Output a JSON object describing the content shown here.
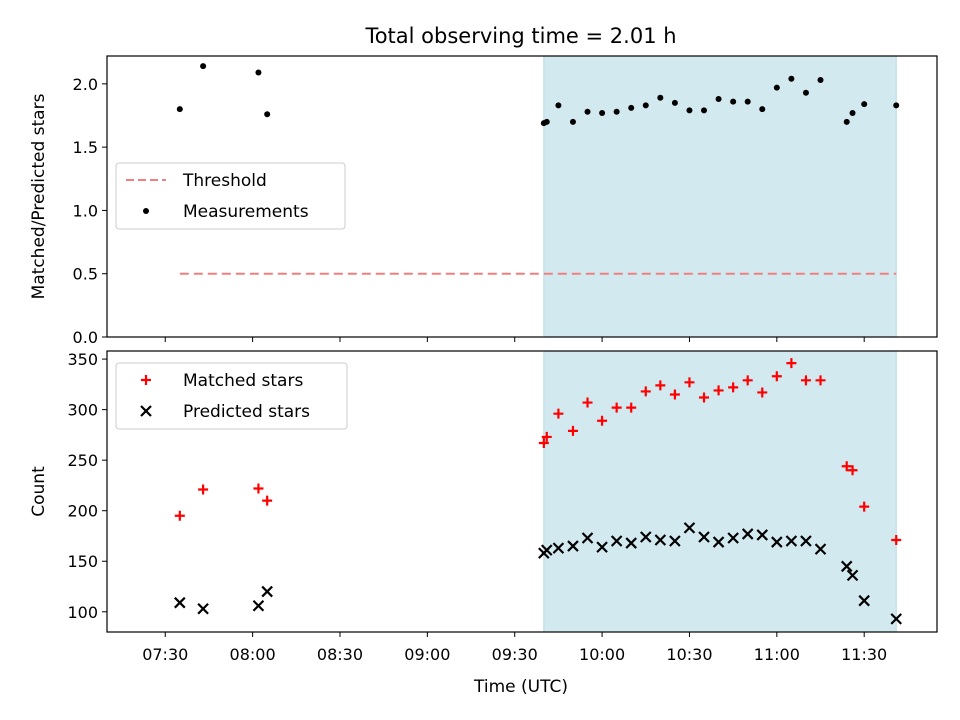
{
  "figure": {
    "title": "Total observing time = 2.01 h",
    "xlabel": "Time (UTC)"
  },
  "colors": {
    "shade": "#d3e9f0",
    "threshold": "#f08080",
    "matched": "#ff0000",
    "predicted": "#000000",
    "measurement": "#000000"
  },
  "chart_data": [
    {
      "type": "scatter",
      "ylabel": "Matched/Predicted stars",
      "ylim": [
        0,
        2.22
      ],
      "yticks": [
        "0.0",
        "0.5",
        "1.0",
        "1.5",
        "2.0"
      ],
      "legend": {
        "placement": "center-left",
        "entries": [
          "Threshold",
          "Measurements"
        ]
      },
      "shaded_interval": [
        "09:40",
        "11:41"
      ],
      "threshold": {
        "name": "Threshold",
        "y": 0.5,
        "x": [
          "07:35",
          "11:41"
        ]
      },
      "series": [
        {
          "name": "Measurements",
          "x": [
            "07:35",
            "07:43",
            "08:02",
            "08:05",
            "09:40",
            "09:41",
            "09:45",
            "09:50",
            "09:55",
            "10:00",
            "10:05",
            "10:10",
            "10:15",
            "10:20",
            "10:25",
            "10:30",
            "10:35",
            "10:40",
            "10:45",
            "10:50",
            "10:55",
            "11:00",
            "11:05",
            "11:10",
            "11:15",
            "11:24",
            "11:26",
            "11:30",
            "11:41"
          ],
          "y": [
            1.8,
            2.14,
            2.09,
            1.76,
            1.69,
            1.7,
            1.83,
            1.7,
            1.78,
            1.77,
            1.78,
            1.81,
            1.83,
            1.89,
            1.85,
            1.79,
            1.79,
            1.88,
            1.86,
            1.86,
            1.8,
            1.97,
            2.04,
            1.93,
            2.03,
            1.7,
            1.77,
            1.84,
            1.83
          ]
        }
      ]
    },
    {
      "type": "scatter",
      "ylabel": "Count",
      "ylim": [
        80,
        358
      ],
      "yticks": [
        "100",
        "150",
        "200",
        "250",
        "300",
        "350"
      ],
      "legend": {
        "placement": "top-left",
        "entries": [
          "Matched stars",
          "Predicted stars"
        ]
      },
      "shaded_interval": [
        "09:40",
        "11:41"
      ],
      "series": [
        {
          "name": "Matched stars",
          "x": [
            "07:35",
            "07:43",
            "08:02",
            "08:05",
            "09:40",
            "09:41",
            "09:45",
            "09:50",
            "09:55",
            "10:00",
            "10:05",
            "10:10",
            "10:15",
            "10:20",
            "10:25",
            "10:30",
            "10:35",
            "10:40",
            "10:45",
            "10:50",
            "10:55",
            "11:00",
            "11:05",
            "11:10",
            "11:15",
            "11:24",
            "11:26",
            "11:30",
            "11:41"
          ],
          "y": [
            195,
            221,
            222,
            210,
            267,
            273,
            296,
            279,
            307,
            289,
            302,
            302,
            318,
            324,
            315,
            327,
            312,
            319,
            322,
            329,
            317,
            333,
            346,
            329,
            329,
            244,
            240,
            204,
            171
          ]
        },
        {
          "name": "Predicted stars",
          "x": [
            "07:35",
            "07:43",
            "08:02",
            "08:05",
            "09:40",
            "09:41",
            "09:45",
            "09:50",
            "09:55",
            "10:00",
            "10:05",
            "10:10",
            "10:15",
            "10:20",
            "10:25",
            "10:30",
            "10:35",
            "10:40",
            "10:45",
            "10:50",
            "10:55",
            "11:00",
            "11:05",
            "11:10",
            "11:15",
            "11:24",
            "11:26",
            "11:30",
            "11:41"
          ],
          "y": [
            109,
            103,
            106,
            120,
            158,
            161,
            163,
            165,
            173,
            164,
            170,
            168,
            174,
            171,
            170,
            183,
            174,
            169,
            173,
            177,
            176,
            169,
            170,
            170,
            162,
            145,
            136,
            111,
            93
          ]
        }
      ]
    }
  ],
  "x_axis": {
    "ticks": [
      "07:30",
      "08:00",
      "08:30",
      "09:00",
      "09:30",
      "10:00",
      "10:30",
      "11:00",
      "11:30"
    ]
  }
}
